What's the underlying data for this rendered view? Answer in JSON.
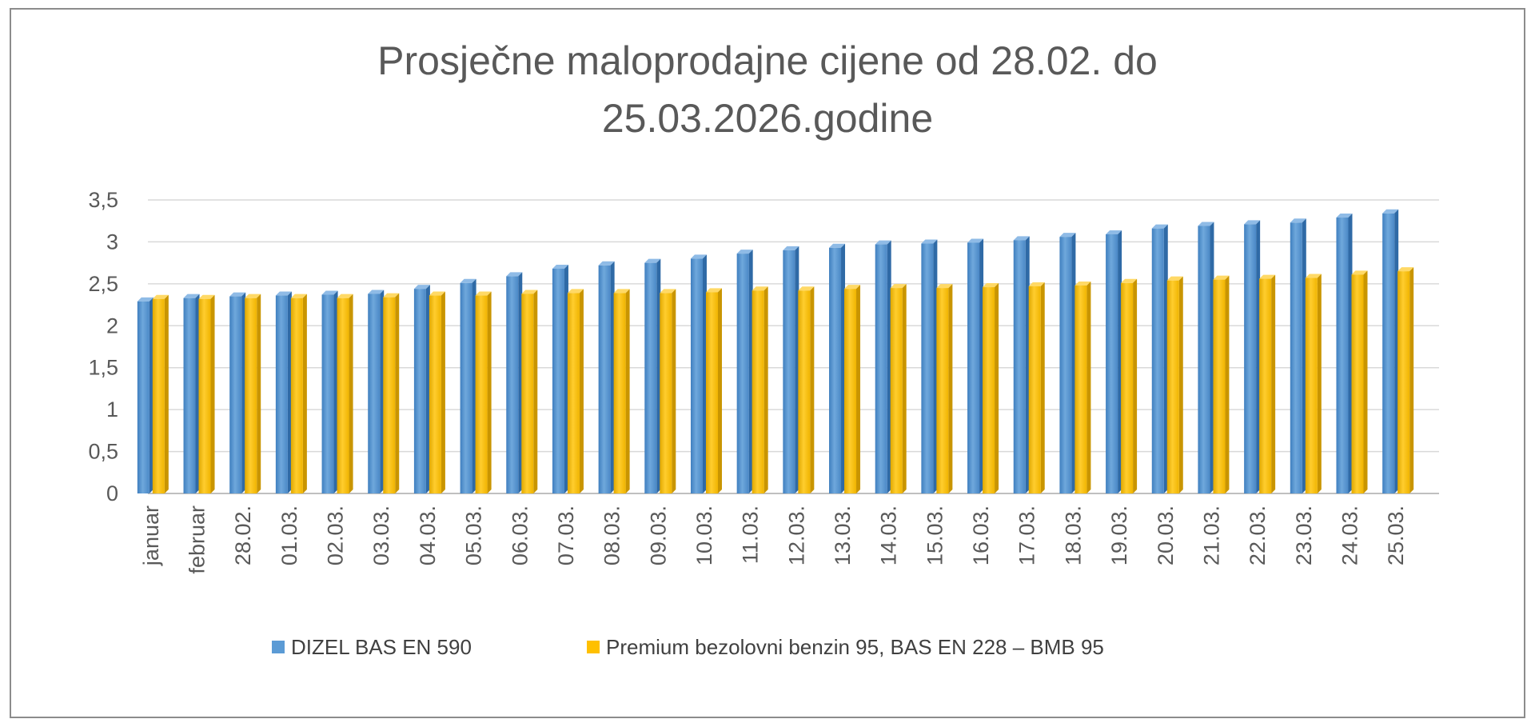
{
  "chart_data": {
    "type": "bar",
    "title": [
      "Prosječne maloprodajne cijene od 28.02. do",
      "25.03.2026.godine"
    ],
    "xlabel": "",
    "ylabel": "",
    "ylim": [
      0,
      3.5
    ],
    "yticks": [
      "0",
      "0,5",
      "1",
      "1,5",
      "2",
      "2,5",
      "3",
      "3,5"
    ],
    "grid": true,
    "legend_position": "bottom",
    "categories": [
      "januar",
      "februar",
      "28.02.",
      "01.03.",
      "02.03.",
      "03.03.",
      "04.03.",
      "05.03.",
      "06.03.",
      "07.03.",
      "08.03.",
      "09.03.",
      "10.03.",
      "11.03.",
      "12.03.",
      "13.03.",
      "14.03.",
      "15.03.",
      "16.03.",
      "17.03.",
      "18.03.",
      "19.03.",
      "20.03.",
      "21.03.",
      "22.03.",
      "23.03.",
      "24.03.",
      "25.03."
    ],
    "series": [
      {
        "name": "DIZEL BAS EN 590",
        "color": "#5b9bd5",
        "values": [
          2.29,
          2.33,
          2.35,
          2.36,
          2.37,
          2.38,
          2.44,
          2.51,
          2.59,
          2.68,
          2.72,
          2.75,
          2.8,
          2.86,
          2.9,
          2.93,
          2.97,
          2.98,
          2.99,
          3.02,
          3.06,
          3.09,
          3.16,
          3.19,
          3.21,
          3.23,
          3.29,
          3.34
        ]
      },
      {
        "name": "Premium bezolovni benzin 95, BAS EN 228 – BMB 95",
        "color": "#ffc000",
        "values": [
          2.32,
          2.32,
          2.33,
          2.33,
          2.33,
          2.34,
          2.36,
          2.36,
          2.38,
          2.39,
          2.39,
          2.39,
          2.4,
          2.42,
          2.42,
          2.44,
          2.45,
          2.45,
          2.46,
          2.47,
          2.48,
          2.51,
          2.54,
          2.55,
          2.56,
          2.57,
          2.61,
          2.65
        ]
      }
    ]
  }
}
